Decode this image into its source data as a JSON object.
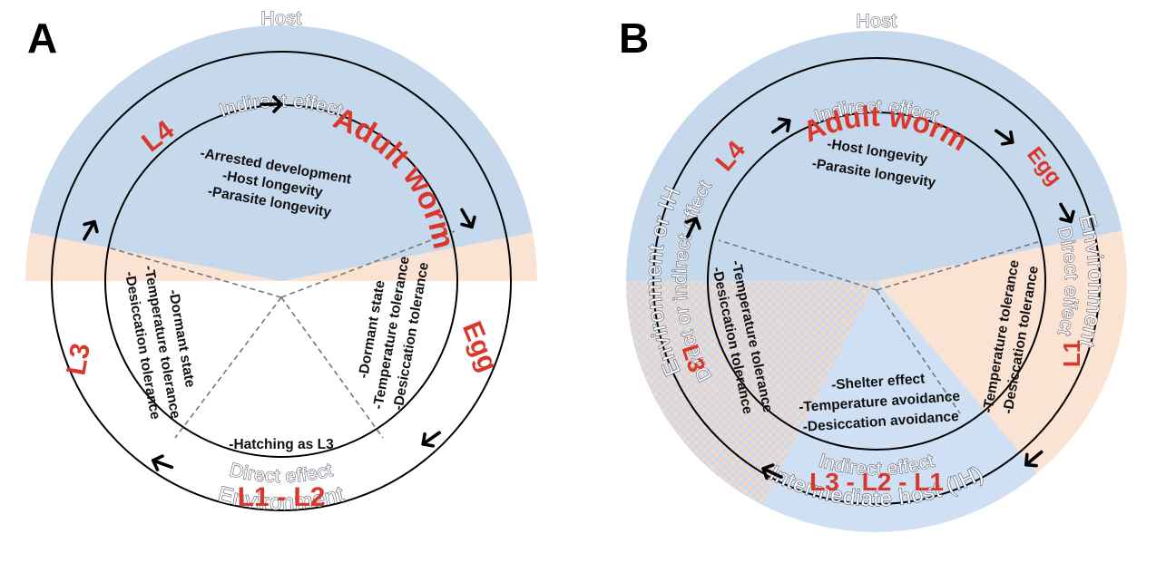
{
  "panel_a": {
    "letter": "A",
    "top_label": "Host",
    "top_effect": "Indirect effect",
    "bottom_effect": "Direct effect",
    "bottom_label": "Environment",
    "stages": {
      "adult": "Adult worm",
      "egg": "Egg",
      "l1l2": "L1 - L2",
      "l3": "L3",
      "l4": "L4"
    },
    "traits_host": [
      "-Arrested development",
      "-Host longevity",
      "-Parasite longevity"
    ],
    "traits_egg": [
      "-Dormant state",
      "-Temperature tolerance",
      "-Desiccation tolerance"
    ],
    "traits_l3": [
      "-Dormant state",
      "-Temperature tolerance",
      "-Desiccation tolerance"
    ],
    "traits_hatch": [
      "-Hatching as L3"
    ]
  },
  "panel_b": {
    "letter": "B",
    "top_label": "Host",
    "top_effect": "Indirect effect",
    "right_effect": "Direct effect",
    "right_label": "Environment",
    "bottom_effect": "Indirect effect",
    "bottom_label": "Intermediate host (IH)",
    "left_effect": "Direct or indirect effect",
    "left_label": "Environment or IH",
    "stages": {
      "adult": "Adult worm",
      "egg": "Egg",
      "l1": "L1",
      "l3l2l1": "L3 - L2 - L1",
      "l3": "L3",
      "l4": "L4"
    },
    "traits_host": [
      "-Host longevity",
      "-Parasite longevity"
    ],
    "traits_l1": [
      "-Temperature tolerance",
      "-Desiccation tolerance"
    ],
    "traits_l3": [
      "-Temperature tolerance",
      "-Desiccation tolerance"
    ],
    "traits_ih": [
      "-Shelter effect",
      "-Temperature avoidance",
      "-Desiccation avoidance"
    ]
  },
  "colors": {
    "host": "#c6d8ec",
    "environment": "#fbe3d4",
    "intermediate_host": "#cfe0f4",
    "stage_text": "#d9372b"
  }
}
